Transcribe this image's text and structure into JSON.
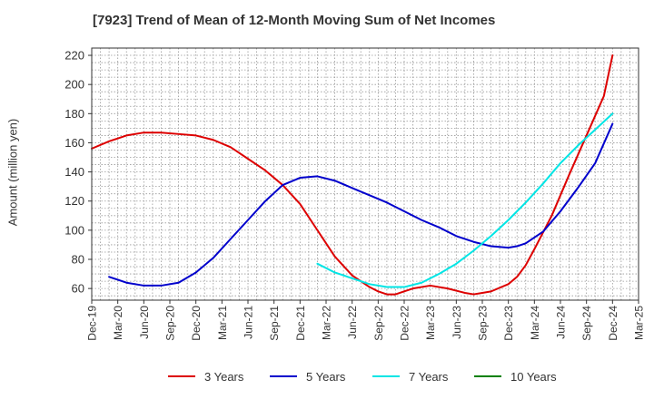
{
  "colors": {
    "background": "#ffffff",
    "grid": "#999999",
    "axis": "#333333",
    "series_3y": "#dd0000",
    "series_5y": "#0000cc",
    "series_7y": "#00e5e5",
    "series_10y": "#008000"
  },
  "chart_data": {
    "type": "line",
    "title": "[7923]  Trend of Mean of 12-Month Moving Sum of Net Incomes",
    "ylabel": "Amount (million yen)",
    "xlabel": "",
    "ylim": [
      52,
      225
    ],
    "yticks": [
      60,
      80,
      100,
      120,
      140,
      160,
      180,
      200,
      220
    ],
    "xticks": [
      "Dec-19",
      "Mar-20",
      "Jun-20",
      "Sep-20",
      "Dec-20",
      "Mar-21",
      "Jun-21",
      "Sep-21",
      "Dec-21",
      "Mar-22",
      "Jun-22",
      "Sep-22",
      "Dec-22",
      "Mar-23",
      "Jun-23",
      "Sep-23",
      "Dec-23",
      "Mar-24",
      "Jun-24",
      "Sep-24",
      "Dec-24",
      "Mar-25"
    ],
    "grid": true,
    "legend_position": "bottom",
    "series": [
      {
        "name": "3 Years",
        "color": "#dd0000",
        "points": [
          [
            "Dec-19",
            156
          ],
          [
            "Feb-20",
            161
          ],
          [
            "Apr-20",
            165
          ],
          [
            "Jun-20",
            167
          ],
          [
            "Aug-20",
            167
          ],
          [
            "Oct-20",
            166
          ],
          [
            "Dec-20",
            165
          ],
          [
            "Feb-21",
            162
          ],
          [
            "Apr-21",
            157
          ],
          [
            "Jun-21",
            149
          ],
          [
            "Aug-21",
            141
          ],
          [
            "Oct-21",
            131
          ],
          [
            "Dec-21",
            118
          ],
          [
            "Feb-22",
            100
          ],
          [
            "Apr-22",
            82
          ],
          [
            "Jun-22",
            69
          ],
          [
            "Aug-22",
            61
          ],
          [
            "Sep-22",
            58
          ],
          [
            "Oct-22",
            56
          ],
          [
            "Nov-22",
            56
          ],
          [
            "Dec-22",
            58
          ],
          [
            "Jan-23",
            60
          ],
          [
            "Mar-23",
            62
          ],
          [
            "May-23",
            60
          ],
          [
            "Jul-23",
            57
          ],
          [
            "Aug-23",
            56
          ],
          [
            "Sep-23",
            57
          ],
          [
            "Oct-23",
            58
          ],
          [
            "Dec-23",
            63
          ],
          [
            "Jan-24",
            68
          ],
          [
            "Feb-24",
            76
          ],
          [
            "Mar-24",
            87
          ],
          [
            "May-24",
            110
          ],
          [
            "Jul-24",
            138
          ],
          [
            "Sep-24",
            165
          ],
          [
            "Nov-24",
            192
          ],
          [
            "Dec-24",
            220
          ]
        ]
      },
      {
        "name": "5 Years",
        "color": "#0000cc",
        "points": [
          [
            "Feb-20",
            68
          ],
          [
            "Apr-20",
            64
          ],
          [
            "Jun-20",
            62
          ],
          [
            "Aug-20",
            62
          ],
          [
            "Oct-20",
            64
          ],
          [
            "Dec-20",
            71
          ],
          [
            "Feb-21",
            81
          ],
          [
            "Apr-21",
            94
          ],
          [
            "Jun-21",
            107
          ],
          [
            "Aug-21",
            120
          ],
          [
            "Oct-21",
            131
          ],
          [
            "Dec-21",
            136
          ],
          [
            "Feb-22",
            137
          ],
          [
            "Apr-22",
            134
          ],
          [
            "Jun-22",
            129
          ],
          [
            "Aug-22",
            124
          ],
          [
            "Oct-22",
            119
          ],
          [
            "Dec-22",
            113
          ],
          [
            "Feb-23",
            107
          ],
          [
            "Apr-23",
            102
          ],
          [
            "Jun-23",
            96
          ],
          [
            "Aug-23",
            92
          ],
          [
            "Oct-23",
            89
          ],
          [
            "Dec-23",
            88
          ],
          [
            "Jan-24",
            89
          ],
          [
            "Feb-24",
            91
          ],
          [
            "Apr-24",
            99
          ],
          [
            "Jun-24",
            113
          ],
          [
            "Aug-24",
            129
          ],
          [
            "Oct-24",
            146
          ],
          [
            "Dec-24",
            173
          ]
        ]
      },
      {
        "name": "7 Years",
        "color": "#00e5e5",
        "points": [
          [
            "Feb-22",
            77
          ],
          [
            "Apr-22",
            71
          ],
          [
            "Jun-22",
            67
          ],
          [
            "Aug-22",
            63
          ],
          [
            "Oct-22",
            61
          ],
          [
            "Dec-22",
            61
          ],
          [
            "Feb-23",
            64
          ],
          [
            "Apr-23",
            70
          ],
          [
            "Jun-23",
            77
          ],
          [
            "Aug-23",
            86
          ],
          [
            "Oct-23",
            96
          ],
          [
            "Dec-23",
            107
          ],
          [
            "Feb-24",
            119
          ],
          [
            "Apr-24",
            132
          ],
          [
            "Jun-24",
            146
          ],
          [
            "Aug-24",
            158
          ],
          [
            "Oct-24",
            169
          ],
          [
            "Dec-24",
            180
          ]
        ]
      },
      {
        "name": "10 Years",
        "color": "#008000",
        "points": []
      }
    ]
  }
}
